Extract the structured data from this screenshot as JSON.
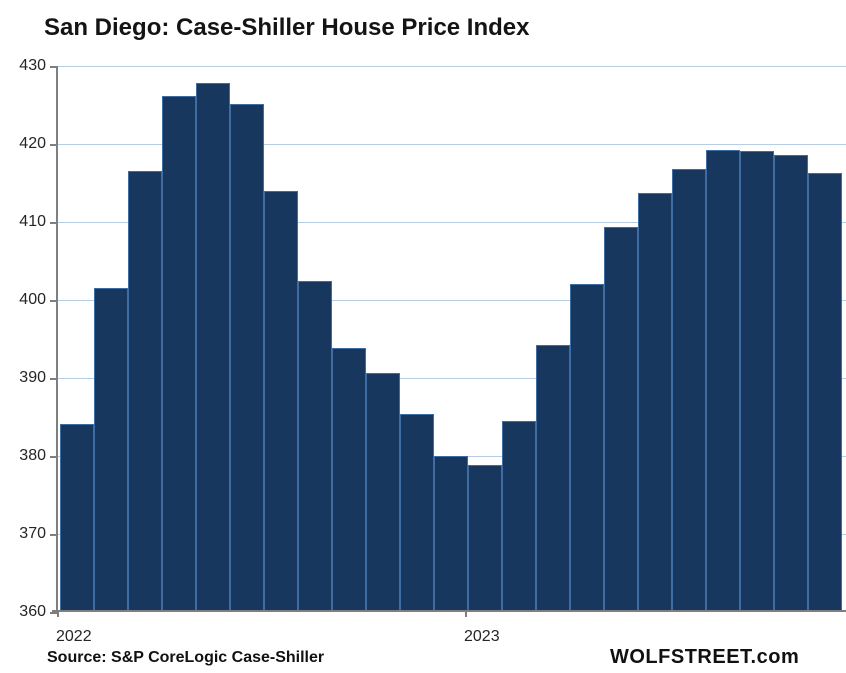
{
  "title": "San Diego: Case-Shiller House Price Index",
  "source_note": "Source: S&P CoreLogic Case-Shiller",
  "branding": "WOLFSTREET.com",
  "colors": {
    "bar_fill": "#17375E",
    "bar_border": "#3E6DA3",
    "gridline": "#B8CCE4",
    "axis": "#7F7F7F",
    "label_text": "#262626",
    "title_text": "#141414"
  },
  "chart_data": {
    "type": "bar",
    "title": "San Diego: Case-Shiller House Price Index",
    "categories": [
      "2022-01",
      "2022-02",
      "2022-03",
      "2022-04",
      "2022-05",
      "2022-06",
      "2022-07",
      "2022-08",
      "2022-09",
      "2022-10",
      "2022-11",
      "2022-12",
      "2023-01",
      "2023-02",
      "2023-03",
      "2023-04",
      "2023-05",
      "2023-06",
      "2023-07",
      "2023-08",
      "2023-09",
      "2023-10",
      "2023-11"
    ],
    "values": [
      384.1,
      401.6,
      416.5,
      426.1,
      427.8,
      425.1,
      414.0,
      402.5,
      393.9,
      390.7,
      385.4,
      380.0,
      378.8,
      384.5,
      394.2,
      402.1,
      409.4,
      413.7,
      416.8,
      419.2,
      419.1,
      418.6,
      416.3
    ],
    "xlabel": "",
    "ylabel": "",
    "ylim": [
      360,
      430
    ],
    "y_ticks": [
      430,
      420,
      410,
      400,
      390,
      380,
      370,
      360
    ],
    "x_tick_labels": [
      {
        "label": "2022",
        "category_index": 0
      },
      {
        "label": "2023",
        "category_index": 12
      }
    ],
    "grid": true,
    "legend": "none"
  }
}
